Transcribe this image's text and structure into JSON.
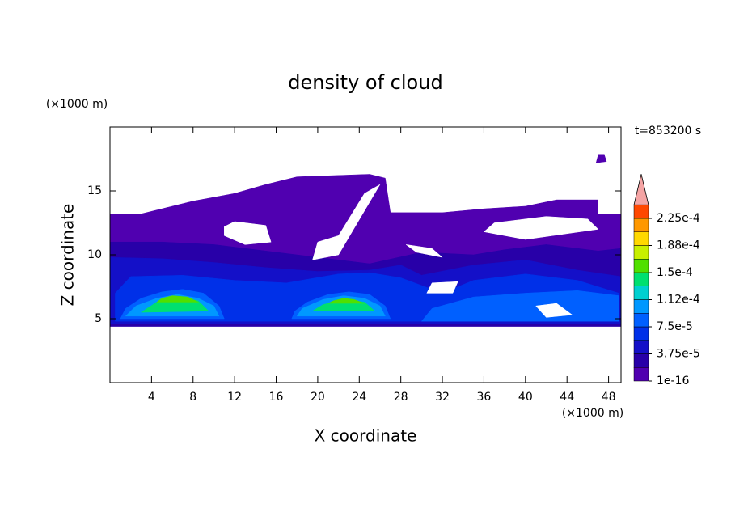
{
  "chart_data": {
    "type": "contour",
    "title": "density of cloud",
    "xlabel": "X coordinate",
    "ylabel": "Z coordinate",
    "x_unit": "(×1000 m)",
    "y_unit": "(×1000 m)",
    "time_label": "t=853200 s",
    "xlim": [
      0,
      49.2
    ],
    "ylim": [
      0,
      20
    ],
    "xticks": [
      4,
      8,
      12,
      16,
      20,
      24,
      28,
      32,
      36,
      40,
      44,
      48
    ],
    "yticks": [
      5,
      10,
      15
    ],
    "clim": [
      1e-16,
      0.00024375
    ],
    "colors": [
      "#5000b0",
      "#2800a8",
      "#1410c8",
      "#0030e8",
      "#0060ff",
      "#0098ff",
      "#00d0d0",
      "#00e070",
      "#50e000",
      "#c8f000",
      "#ffd800",
      "#ff9800",
      "#ff4800"
    ],
    "extend_color": "#f4a4a4",
    "cticks": [
      1e-16,
      {
        "value": 3.75e-05,
        "label": "3.75e-5"
      },
      {
        "value": 7.5e-05,
        "label": "7.5e-5"
      },
      {
        "value": 0.0001125,
        "label": "1.12e-4"
      },
      {
        "value": 0.00015,
        "label": "1.5e-4"
      },
      {
        "value": 0.0001875,
        "label": "1.88e-4"
      },
      {
        "value": 0.000225,
        "label": "2.25e-4"
      }
    ],
    "regions": [
      {
        "level": 0,
        "x": [
          0,
          49.2,
          49.2,
          47,
          47,
          43,
          40,
          36,
          32,
          27,
          26.5,
          25,
          18,
          15,
          12,
          8,
          3,
          0
        ],
        "z": [
          4.4,
          4.4,
          13.2,
          13.2,
          14.3,
          14.3,
          13.8,
          13.6,
          13.3,
          13.3,
          16,
          16.3,
          16.1,
          15.5,
          14.8,
          14.2,
          13.2,
          13.2
        ]
      },
      {
        "level": 0,
        "x": [
          46.8,
          47.8,
          47.6,
          47
        ],
        "z": [
          17.2,
          17.3,
          17.8,
          17.8
        ]
      },
      {
        "level": 1,
        "x": [
          0,
          49.2,
          49.2,
          47,
          42,
          38,
          35,
          30,
          25,
          20,
          15,
          10,
          5,
          0
        ],
        "z": [
          4.4,
          4.4,
          10.5,
          10.3,
          10.8,
          10.4,
          10,
          10.2,
          9.3,
          9.8,
          10.3,
          10.8,
          11,
          11
        ]
      },
      {
        "level": 2,
        "x": [
          0,
          49.2,
          49.2,
          45,
          40,
          35,
          30,
          28,
          25,
          20,
          15,
          10,
          5,
          0
        ],
        "z": [
          4.6,
          4.6,
          8.3,
          8.8,
          9.6,
          9.2,
          8.4,
          9.2,
          8.8,
          8.7,
          9,
          9.4,
          9.7,
          9.8
        ]
      },
      {
        "level": 3,
        "x": [
          0.5,
          49,
          49,
          45,
          40,
          35,
          32,
          28,
          25,
          22,
          17,
          12,
          7,
          2,
          0.5
        ],
        "z": [
          4.8,
          4.8,
          7,
          8,
          8.5,
          8,
          7,
          8.2,
          8.6,
          8.5,
          7.8,
          8,
          8.4,
          8.3,
          7
        ]
      },
      {
        "level": 4,
        "x": [
          30,
          49,
          49,
          45,
          40,
          35,
          31
        ],
        "z": [
          4.8,
          4.8,
          6.8,
          7.2,
          7,
          6.7,
          5.8
        ]
      },
      {
        "level": 4,
        "x": [
          1,
          11,
          10.5,
          9,
          7,
          5,
          3,
          1.5
        ],
        "z": [
          5,
          5,
          6,
          7,
          7.3,
          7.1,
          6.6,
          5.8
        ]
      },
      {
        "level": 4,
        "x": [
          17.5,
          27,
          26.5,
          25,
          23,
          21,
          19,
          17.8
        ],
        "z": [
          5,
          5,
          6,
          6.9,
          7.1,
          6.9,
          6.3,
          5.6
        ]
      },
      {
        "level": 5,
        "x": [
          1.5,
          10.5,
          10,
          8.5,
          6.5,
          4.5,
          2.5
        ],
        "z": [
          5.2,
          5.2,
          6,
          6.6,
          6.9,
          6.6,
          6
        ]
      },
      {
        "level": 5,
        "x": [
          18,
          26.5,
          26,
          24.5,
          22.5,
          20.5,
          18.5
        ],
        "z": [
          5.2,
          5.2,
          6,
          6.6,
          6.8,
          6.5,
          5.8
        ]
      },
      {
        "level": 7,
        "x": [
          3,
          9.5,
          8.5,
          6.5,
          4.5
        ],
        "z": [
          5.5,
          5.6,
          6.4,
          6.7,
          6.3
        ]
      },
      {
        "level": 7,
        "x": [
          19.5,
          25.5,
          24.5,
          22.5,
          20.5
        ],
        "z": [
          5.6,
          5.6,
          6.3,
          6.5,
          6.1
        ]
      },
      {
        "level": 8,
        "x": [
          4.5,
          8.5,
          7.5,
          6,
          5
        ],
        "z": [
          6.3,
          6.3,
          6.7,
          6.8,
          6.6
        ]
      },
      {
        "level": 8,
        "x": [
          21,
          24.5,
          23.5,
          22.5,
          21.5
        ],
        "z": [
          6.2,
          6.2,
          6.5,
          6.6,
          6.4
        ]
      },
      {
        "level": null,
        "x": [
          19.5,
          22,
          26,
          24.5,
          22,
          20
        ],
        "z": [
          9.6,
          10,
          15.5,
          14.8,
          11.5,
          11
        ]
      },
      {
        "level": null,
        "x": [
          11,
          12,
          15,
          15.5,
          13,
          11
        ],
        "z": [
          12.2,
          12.6,
          12.3,
          11,
          10.8,
          11.5
        ]
      },
      {
        "level": null,
        "x": [
          37,
          42,
          46,
          47,
          40,
          36
        ],
        "z": [
          12.5,
          13,
          12.8,
          12,
          11.2,
          11.8
        ]
      },
      {
        "level": null,
        "x": [
          28.5,
          31,
          32,
          29.5
        ],
        "z": [
          10.8,
          10.5,
          9.8,
          10.2
        ]
      },
      {
        "level": null,
        "x": [
          31,
          33.5,
          33,
          30.5
        ],
        "z": [
          7.8,
          7.9,
          7,
          7
        ]
      },
      {
        "level": null,
        "x": [
          41,
          43,
          44.5,
          42
        ],
        "z": [
          6,
          6.2,
          5.3,
          5.1
        ]
      }
    ]
  }
}
